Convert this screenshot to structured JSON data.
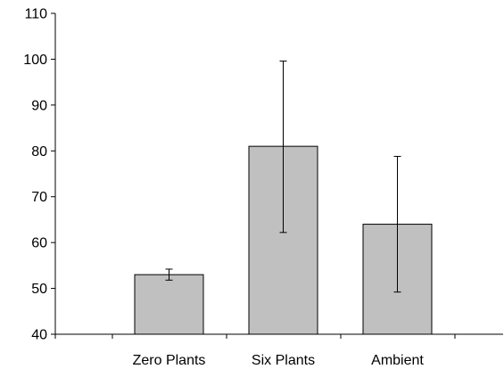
{
  "chart_data": {
    "type": "bar",
    "title": "",
    "xlabel": "",
    "ylabel": "",
    "categories": [
      "Zero Plants",
      "Six Plants",
      "Ambient"
    ],
    "values": [
      53,
      81,
      64
    ],
    "error_bars": [
      {
        "low": 51.8,
        "high": 54.2
      },
      {
        "low": 62.2,
        "high": 99.6
      },
      {
        "low": 49.2,
        "high": 78.8
      }
    ],
    "ylim": [
      40,
      110
    ],
    "yticks": [
      40,
      50,
      60,
      70,
      80,
      90,
      100,
      110
    ],
    "grid": false,
    "legend": "none",
    "colors": {
      "bar_fill": "#c0c0c0",
      "bar_stroke": "#000000",
      "axis": "#000000"
    }
  }
}
